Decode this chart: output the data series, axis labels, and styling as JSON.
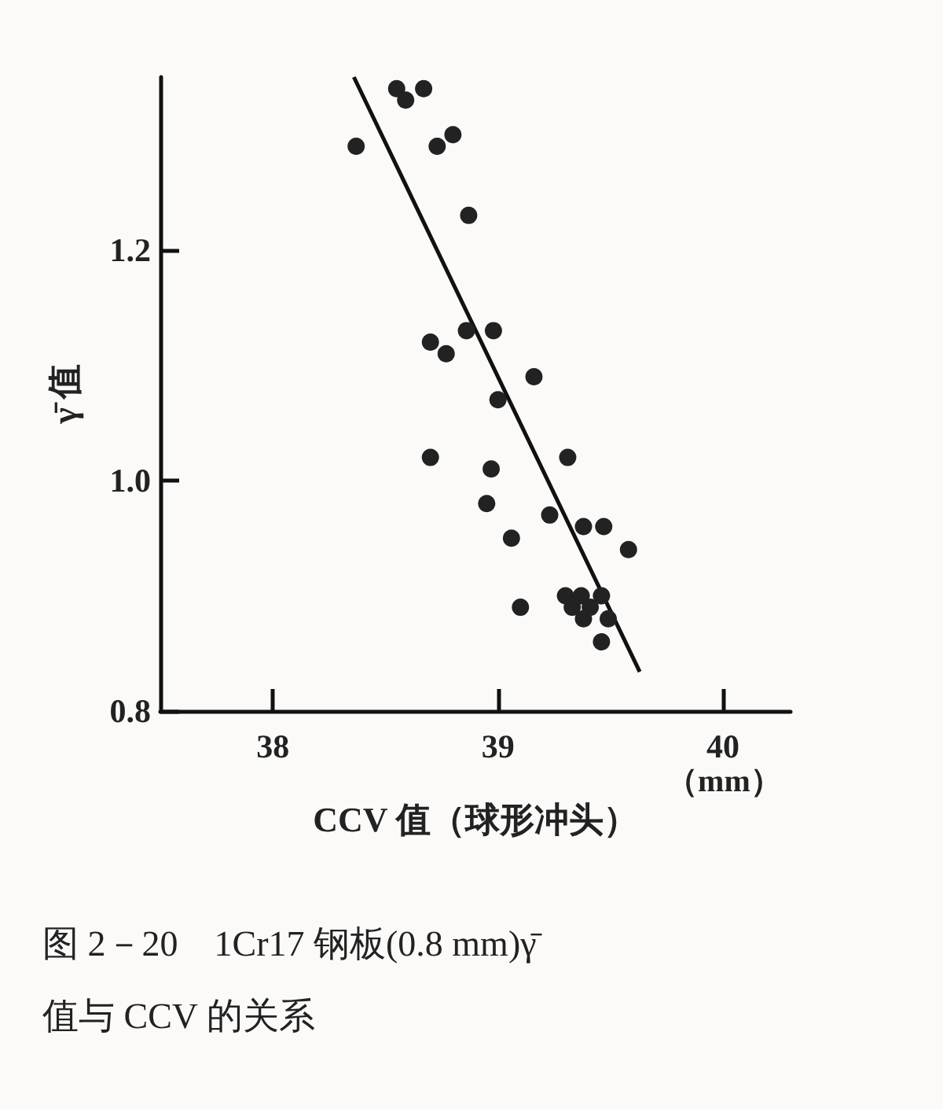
{
  "chart_data": {
    "type": "scatter",
    "title": "图 2－20　1Cr17 钢板(0.8 mm)γ̄\n值与 CCV 的关系",
    "xlabel": "CCV 值（球形冲头）",
    "ylabel": "γ̄ 值",
    "annotations": [
      "（mm）"
    ],
    "xlim": [
      37.5,
      40.3
    ],
    "xticks": [
      38,
      39,
      40
    ],
    "ylim": [
      0.8,
      1.35
    ],
    "yticks": [
      {
        "value": 0.8,
        "label": "0.8"
      },
      {
        "value": 1,
        "label": "1.0"
      },
      {
        "value": 1.2,
        "label": "1.2"
      }
    ],
    "grid": false,
    "marker": "circle",
    "series": [
      {
        "color": "#222222",
        "x": [
          38.55,
          38.67,
          38.59,
          38.37,
          38.73,
          38.8,
          38.87,
          38.7,
          38.77,
          38.86,
          38.98,
          39.16,
          39.0,
          38.7,
          38.97,
          39.31,
          38.95,
          39.06,
          39.23,
          39.38,
          39.47,
          39.58,
          39.1,
          39.3,
          39.37,
          39.46,
          39.33,
          39.41,
          39.38,
          39.49,
          39.46
        ],
        "values": [
          1.34,
          1.34,
          1.33,
          1.29,
          1.29,
          1.3,
          1.23,
          1.12,
          1.11,
          1.13,
          1.13,
          1.09,
          1.07,
          1.02,
          1.01,
          1.02,
          0.98,
          0.95,
          0.97,
          0.96,
          0.96,
          0.94,
          0.89,
          0.9,
          0.9,
          0.9,
          0.89,
          0.89,
          0.88,
          0.88,
          0.86
        ]
      },
      {
        "type": "line",
        "color": "#111111",
        "marker": "none",
        "line_style": "solid",
        "x": [
          38.36,
          39.63
        ],
        "values": [
          1.35,
          0.834
        ]
      }
    ]
  }
}
